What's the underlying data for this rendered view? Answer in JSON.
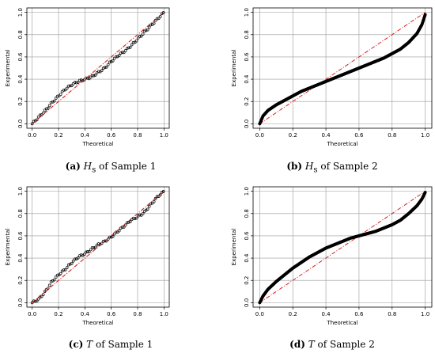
{
  "captions": [
    {
      "letter": "(a)",
      "var": "H",
      "sub": "s",
      "rest": " of Sample 1"
    },
    {
      "letter": "(b)",
      "var": "H",
      "sub": "s",
      "rest": " of Sample 2"
    },
    {
      "letter": "(c)",
      "var": "T",
      "sub": "",
      "rest": " of Sample 1"
    },
    {
      "letter": "(d)",
      "var": "T",
      "sub": "",
      "rest": " of Sample 2"
    }
  ],
  "chart_data": [
    {
      "type": "scatter",
      "xlabel": "Theoretical",
      "ylabel": "Experimental",
      "xlim": [
        0,
        1
      ],
      "ylim": [
        0,
        1
      ],
      "xticks": [
        "0.0",
        "0.2",
        "0.4",
        "0.6",
        "0.8",
        "1.0"
      ],
      "yticks": [
        "0.0",
        "0.2",
        "0.4",
        "0.6",
        "0.8",
        "1.0"
      ],
      "grid": true,
      "reference_line": {
        "x": [
          0,
          1
        ],
        "y": [
          0,
          1
        ],
        "color": "#d62020",
        "style": "dash-dot"
      },
      "point_style": "open-circles",
      "x": [
        0.0,
        0.05,
        0.1,
        0.15,
        0.2,
        0.25,
        0.3,
        0.35,
        0.4,
        0.45,
        0.5,
        0.55,
        0.6,
        0.65,
        0.7,
        0.75,
        0.8,
        0.85,
        0.9,
        0.95,
        1.0
      ],
      "y": [
        0.0,
        0.06,
        0.12,
        0.19,
        0.25,
        0.31,
        0.35,
        0.38,
        0.4,
        0.42,
        0.46,
        0.5,
        0.56,
        0.61,
        0.65,
        0.7,
        0.76,
        0.82,
        0.88,
        0.94,
        1.0
      ]
    },
    {
      "type": "scatter",
      "xlabel": "Theoretical",
      "ylabel": "Experimental",
      "xlim": [
        0,
        1
      ],
      "ylim": [
        0,
        1
      ],
      "xticks": [
        "0.0",
        "0.2",
        "0.4",
        "0.6",
        "0.8",
        "1.0"
      ],
      "yticks": [
        "0.0",
        "0.2",
        "0.4",
        "0.6",
        "0.8",
        "1.0"
      ],
      "grid": true,
      "reference_line": {
        "x": [
          0,
          1
        ],
        "y": [
          0,
          1
        ],
        "color": "#d62020",
        "style": "dash-dot"
      },
      "point_style": "dense-filled",
      "x": [
        0.0,
        0.02,
        0.05,
        0.1,
        0.15,
        0.2,
        0.25,
        0.3,
        0.35,
        0.4,
        0.45,
        0.5,
        0.55,
        0.6,
        0.65,
        0.7,
        0.75,
        0.8,
        0.85,
        0.9,
        0.95,
        0.98,
        1.0
      ],
      "y": [
        0.0,
        0.07,
        0.12,
        0.17,
        0.21,
        0.25,
        0.29,
        0.32,
        0.35,
        0.38,
        0.41,
        0.44,
        0.47,
        0.5,
        0.53,
        0.56,
        0.59,
        0.63,
        0.67,
        0.73,
        0.81,
        0.89,
        0.98
      ]
    },
    {
      "type": "scatter",
      "xlabel": "Theoretical",
      "ylabel": "Experimental",
      "xlim": [
        0,
        1
      ],
      "ylim": [
        0,
        1
      ],
      "xticks": [
        "0.0",
        "0.2",
        "0.4",
        "0.6",
        "0.8",
        "1.0"
      ],
      "yticks": [
        "0.0",
        "0.2",
        "0.4",
        "0.6",
        "0.8",
        "1.0"
      ],
      "grid": true,
      "reference_line": {
        "x": [
          0,
          1
        ],
        "y": [
          0,
          1
        ],
        "color": "#d62020",
        "style": "dash-dot"
      },
      "point_style": "open-circles",
      "x": [
        0.0,
        0.05,
        0.1,
        0.15,
        0.2,
        0.25,
        0.3,
        0.35,
        0.4,
        0.45,
        0.5,
        0.55,
        0.6,
        0.65,
        0.7,
        0.75,
        0.8,
        0.85,
        0.9,
        0.95,
        1.0
      ],
      "y": [
        0.0,
        0.03,
        0.1,
        0.19,
        0.25,
        0.3,
        0.36,
        0.41,
        0.44,
        0.48,
        0.52,
        0.55,
        0.59,
        0.64,
        0.69,
        0.74,
        0.77,
        0.81,
        0.88,
        0.95,
        1.0
      ]
    },
    {
      "type": "scatter",
      "xlabel": "Theoretical",
      "ylabel": "Experimental",
      "xlim": [
        0,
        1
      ],
      "ylim": [
        0,
        1
      ],
      "xticks": [
        "0.0",
        "0.2",
        "0.4",
        "0.6",
        "0.8",
        "1.0"
      ],
      "yticks": [
        "0.0",
        "0.2",
        "0.4",
        "0.6",
        "0.8",
        "1.0"
      ],
      "grid": true,
      "reference_line": {
        "x": [
          0,
          1
        ],
        "y": [
          0,
          1
        ],
        "color": "#d62020",
        "style": "dash-dot"
      },
      "point_style": "dense-filled",
      "x": [
        0.0,
        0.02,
        0.05,
        0.1,
        0.15,
        0.2,
        0.25,
        0.3,
        0.35,
        0.4,
        0.45,
        0.5,
        0.55,
        0.6,
        0.65,
        0.7,
        0.75,
        0.8,
        0.85,
        0.9,
        0.95,
        0.98,
        1.0
      ],
      "y": [
        0.0,
        0.06,
        0.12,
        0.19,
        0.25,
        0.31,
        0.36,
        0.41,
        0.45,
        0.49,
        0.52,
        0.55,
        0.58,
        0.6,
        0.62,
        0.64,
        0.67,
        0.7,
        0.74,
        0.8,
        0.87,
        0.93,
        0.99
      ]
    }
  ]
}
